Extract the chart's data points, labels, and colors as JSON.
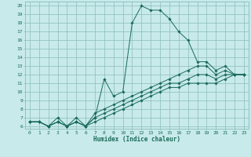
{
  "xlabel": "Humidex (Indice chaleur)",
  "ylabel": "",
  "bg_color": "#c8eaea",
  "grid_color": "#8bbcbc",
  "line_color": "#1a6b5a",
  "xlim": [
    -0.5,
    23.5
  ],
  "ylim": [
    5.7,
    20.5
  ],
  "xticks": [
    0,
    1,
    2,
    3,
    4,
    5,
    6,
    7,
    8,
    9,
    10,
    11,
    12,
    13,
    14,
    15,
    16,
    17,
    18,
    19,
    20,
    21,
    22,
    23
  ],
  "yticks": [
    6,
    7,
    8,
    9,
    10,
    11,
    12,
    13,
    14,
    15,
    16,
    17,
    18,
    19,
    20
  ],
  "lines": [
    {
      "x": [
        0,
        1,
        2,
        3,
        4,
        5,
        6,
        7,
        8,
        9,
        10,
        11,
        12,
        13,
        14,
        15,
        16,
        17,
        18,
        19,
        20,
        21,
        22,
        23
      ],
      "y": [
        6.5,
        6.5,
        6.0,
        7.0,
        6.0,
        6.5,
        6.0,
        7.0,
        11.5,
        9.5,
        10.0,
        18.0,
        20.0,
        19.5,
        19.5,
        18.5,
        17.0,
        16.0,
        13.5,
        13.5,
        12.5,
        13.0,
        12.0,
        12.0
      ]
    },
    {
      "x": [
        0,
        1,
        2,
        3,
        4,
        5,
        6,
        7,
        8,
        9,
        10,
        11,
        12,
        13,
        14,
        15,
        16,
        17,
        18,
        19,
        20,
        21,
        22,
        23
      ],
      "y": [
        6.5,
        6.5,
        6.0,
        6.5,
        6.0,
        7.0,
        6.0,
        7.5,
        8.0,
        8.5,
        9.0,
        9.5,
        10.0,
        10.5,
        11.0,
        11.5,
        12.0,
        12.5,
        13.0,
        13.0,
        12.0,
        12.5,
        12.0,
        12.0
      ]
    },
    {
      "x": [
        0,
        1,
        2,
        3,
        4,
        5,
        6,
        7,
        8,
        9,
        10,
        11,
        12,
        13,
        14,
        15,
        16,
        17,
        18,
        19,
        20,
        21,
        22,
        23
      ],
      "y": [
        6.5,
        6.5,
        6.0,
        6.5,
        6.0,
        6.5,
        6.0,
        7.0,
        7.5,
        8.0,
        8.5,
        9.0,
        9.5,
        10.0,
        10.5,
        11.0,
        11.0,
        11.5,
        12.0,
        12.0,
        11.5,
        12.0,
        12.0,
        12.0
      ]
    },
    {
      "x": [
        0,
        1,
        2,
        3,
        4,
        5,
        6,
        7,
        8,
        9,
        10,
        11,
        12,
        13,
        14,
        15,
        16,
        17,
        18,
        19,
        20,
        21,
        22,
        23
      ],
      "y": [
        6.5,
        6.5,
        6.0,
        6.5,
        6.0,
        6.5,
        6.0,
        6.5,
        7.0,
        7.5,
        8.0,
        8.5,
        9.0,
        9.5,
        10.0,
        10.5,
        10.5,
        11.0,
        11.0,
        11.0,
        11.0,
        11.5,
        12.0,
        12.0
      ]
    }
  ]
}
